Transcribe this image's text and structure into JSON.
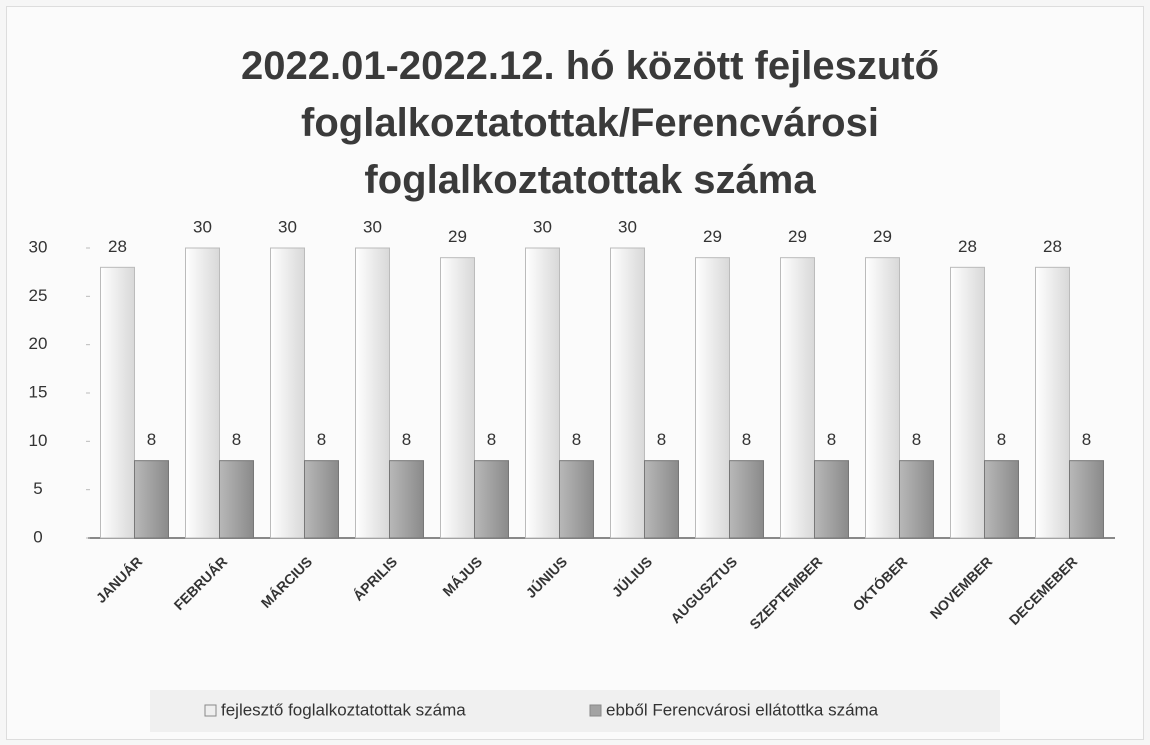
{
  "chart_data": {
    "type": "bar",
    "title": "2022.01-2022.12. hó között fejleszutő foglalkoztatottak/Ferencvárosi foglalkoztatottak száma",
    "categories": [
      "JANUÁR",
      "FEBRUÁR",
      "MÁRCIUS",
      "ÁPRILIS",
      "MÁJUS",
      "JÚNIUS",
      "JÚLIUS",
      "AUGUSZTUS",
      "SZEPTEMBER",
      "OKTÓBER",
      "NOVEMBER",
      "DECEMEBER"
    ],
    "series": [
      {
        "name": "fejlesztő foglalkoztatottak száma",
        "color": "#efefef",
        "values": [
          28,
          30,
          30,
          30,
          29,
          30,
          30,
          29,
          29,
          29,
          28,
          28
        ]
      },
      {
        "name": "ebből Ferencvárosi ellátottka száma",
        "color": "#a3a3a3",
        "values": [
          8,
          8,
          8,
          8,
          8,
          8,
          8,
          8,
          8,
          8,
          8,
          8
        ]
      }
    ],
    "ylim": [
      0,
      30
    ],
    "yticks": [
      0,
      5,
      10,
      15,
      20,
      25,
      30
    ],
    "grid": false,
    "legend": "bottom"
  }
}
